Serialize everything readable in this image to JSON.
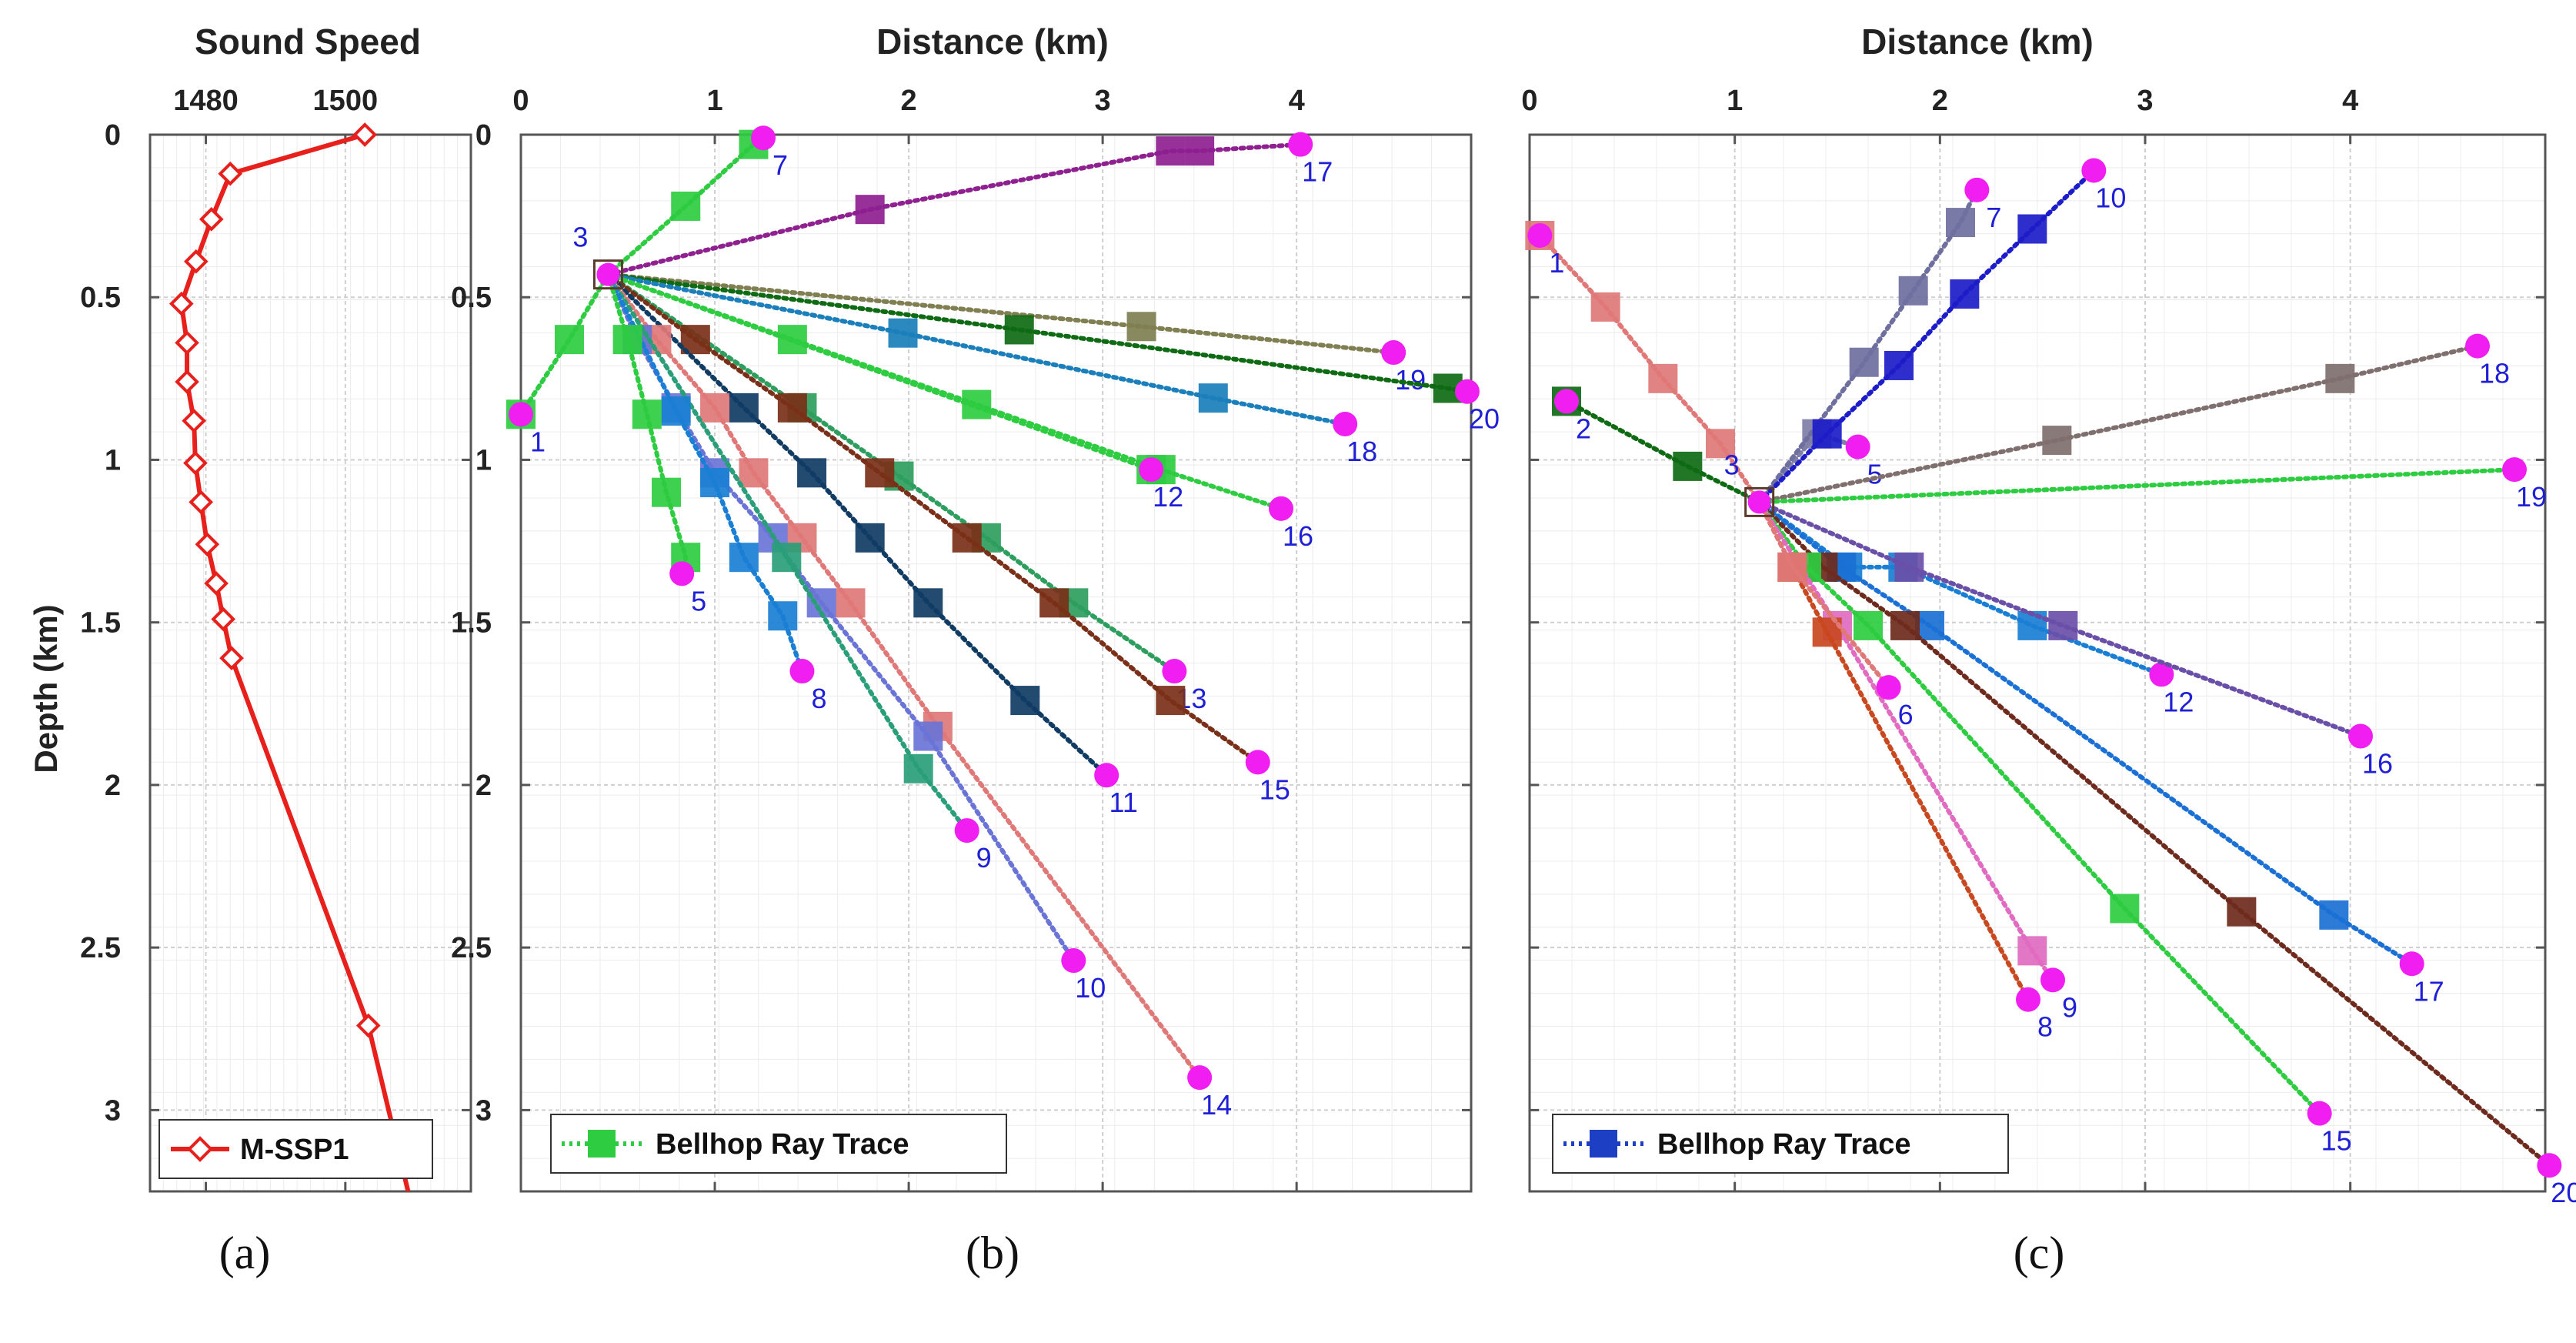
{
  "chart_data": [
    {
      "panel": "(a)",
      "type": "line",
      "title": "Sound Speed",
      "ylabel": "Depth (km)",
      "xlim": [
        1472,
        1518
      ],
      "ylim": [
        0,
        3.25
      ],
      "xticks": [
        "1480",
        "1500"
      ],
      "xtick_values": [
        1480,
        1500
      ],
      "yticks": [
        "0",
        "0.5",
        "1",
        "1.5",
        "2",
        "2.5",
        "3"
      ],
      "ytick_values": [
        0,
        0.5,
        1,
        1.5,
        2,
        2.5,
        3
      ],
      "legend": "M-SSP1",
      "color": "#e8201c",
      "profile": [
        [
          1502.8,
          0
        ],
        [
          1483.5,
          0.12
        ],
        [
          1480.8,
          0.26
        ],
        [
          1478.6,
          0.39
        ],
        [
          1476.5,
          0.52
        ],
        [
          1477.3,
          0.64
        ],
        [
          1477.3,
          0.76
        ],
        [
          1478.3,
          0.88
        ],
        [
          1478.5,
          1.01
        ],
        [
          1479.3,
          1.13
        ],
        [
          1480.2,
          1.26
        ],
        [
          1481.5,
          1.38
        ],
        [
          1482.5,
          1.49
        ],
        [
          1483.7,
          1.61
        ],
        [
          1503.3,
          2.74
        ],
        [
          1509,
          3.25
        ]
      ],
      "markers": [
        [
          1502.8,
          0
        ],
        [
          1483.5,
          0.12
        ],
        [
          1480.8,
          0.26
        ],
        [
          1478.6,
          0.39
        ],
        [
          1476.5,
          0.52
        ],
        [
          1477.3,
          0.64
        ],
        [
          1477.3,
          0.76
        ],
        [
          1478.3,
          0.88
        ],
        [
          1478.5,
          1.01
        ],
        [
          1479.3,
          1.13
        ],
        [
          1480.2,
          1.26
        ],
        [
          1481.5,
          1.38
        ],
        [
          1482.5,
          1.49
        ],
        [
          1483.7,
          1.61
        ],
        [
          1503.3,
          2.74
        ]
      ]
    },
    {
      "panel": "(b)",
      "type": "scatter",
      "title": "Distance (km)",
      "xlim": [
        0,
        4.9
      ],
      "ylim": [
        0,
        3.25
      ],
      "xticks": [
        "0",
        "1",
        "2",
        "3",
        "4"
      ],
      "xtick_values": [
        0,
        1,
        2,
        3,
        4
      ],
      "yticks": [
        "0",
        "0.5",
        "1",
        "1.5",
        "2",
        "2.5",
        "3"
      ],
      "ytick_values": [
        0,
        0.5,
        1,
        1.5,
        2,
        2.5,
        3
      ],
      "legend": "Bellhop Ray Trace",
      "legend_color": "#2ecc40",
      "source": {
        "label": "3",
        "x": 0.45,
        "y": 0.43
      },
      "rays": [
        {
          "label": "1",
          "x": 0,
          "y": 0.86,
          "color": "#2ecc40",
          "squares": [
            [
              0.25,
              0.63
            ],
            [
              0,
              0.86
            ]
          ]
        },
        {
          "label": "7",
          "x": 1.25,
          "y": 0.01,
          "color": "#2ecc40",
          "squares": [
            [
              0.85,
              0.22
            ],
            [
              1.2,
              0.03
            ]
          ]
        },
        {
          "label": "17",
          "x": 4.02,
          "y": 0.03,
          "color": "#8e2090",
          "squares": [
            [
              1.8,
              0.23
            ],
            [
              3.35,
              0.05
            ],
            [
              3.5,
              0.05
            ]
          ]
        },
        {
          "label": "19",
          "x": 4.5,
          "y": 0.67,
          "color": "#7f7f52",
          "squares": [
            [
              3.2,
              0.59
            ]
          ]
        },
        {
          "label": "20",
          "x": 4.88,
          "y": 0.79,
          "color": "#0f6b13",
          "squares": [
            [
              2.57,
              0.6
            ],
            [
              4.78,
              0.78
            ]
          ]
        },
        {
          "label": "18",
          "x": 4.25,
          "y": 0.89,
          "color": "#1a7fba",
          "squares": [
            [
              1.97,
              0.61
            ],
            [
              3.57,
              0.81
            ]
          ]
        },
        {
          "label": "16",
          "x": 3.92,
          "y": 1.15,
          "color": "#2ecc40",
          "squares": [
            [
              1.4,
              0.63
            ],
            [
              2.35,
              0.83
            ],
            [
              3.3,
              1.03
            ]
          ]
        },
        {
          "label": "12",
          "x": 3.25,
          "y": 1.03,
          "color": "#2ecc40",
          "squares": [
            [
              3.25,
              1.03
            ]
          ]
        },
        {
          "label": "13",
          "x": 3.37,
          "y": 1.65,
          "color": "#2e9e5e",
          "squares": [
            [
              1.45,
              0.84
            ],
            [
              1.95,
              1.05
            ],
            [
              2.4,
              1.24
            ],
            [
              2.85,
              1.44
            ]
          ]
        },
        {
          "label": "15",
          "x": 3.8,
          "y": 1.93,
          "color": "#7a3018",
          "squares": [
            [
              0.9,
              0.63
            ],
            [
              1.4,
              0.84
            ],
            [
              1.85,
              1.04
            ],
            [
              2.3,
              1.24
            ],
            [
              2.75,
              1.44
            ],
            [
              3.35,
              1.74
            ]
          ]
        },
        {
          "label": "11",
          "x": 3.02,
          "y": 1.97,
          "color": "#103c64",
          "squares": [
            [
              1.15,
              0.84
            ],
            [
              1.5,
              1.04
            ],
            [
              1.8,
              1.24
            ],
            [
              2.1,
              1.44
            ],
            [
              2.6,
              1.74
            ]
          ]
        },
        {
          "label": "14",
          "x": 3.5,
          "y": 2.9,
          "color": "#e07878",
          "squares": [
            [
              0.7,
              0.63
            ],
            [
              1.0,
              0.84
            ],
            [
              1.2,
              1.04
            ],
            [
              1.45,
              1.24
            ],
            [
              1.7,
              1.44
            ],
            [
              2.15,
              1.82
            ]
          ]
        },
        {
          "label": "10",
          "x": 2.85,
          "y": 2.54,
          "color": "#6a74d6",
          "squares": [
            [
              0.6,
              0.63
            ],
            [
              0.8,
              0.84
            ],
            [
              1.0,
              1.04
            ],
            [
              1.3,
              1.24
            ],
            [
              1.55,
              1.44
            ],
            [
              2.1,
              1.85
            ]
          ]
        },
        {
          "label": "9",
          "x": 2.3,
          "y": 2.14,
          "color": "#2a9e78",
          "squares": [
            [
              1.37,
              1.3
            ],
            [
              2.05,
              1.95
            ]
          ]
        },
        {
          "label": "8",
          "x": 1.45,
          "y": 1.65,
          "color": "#1a7fd4",
          "squares": [
            [
              0.8,
              0.85
            ],
            [
              1.0,
              1.07
            ],
            [
              1.15,
              1.3
            ],
            [
              1.35,
              1.48
            ]
          ]
        },
        {
          "label": "5",
          "x": 0.83,
          "y": 1.35,
          "color": "#2ecc40",
          "squares": [
            [
              0.55,
              0.63
            ],
            [
              0.65,
              0.86
            ],
            [
              0.75,
              1.1
            ],
            [
              0.85,
              1.3
            ]
          ]
        }
      ]
    },
    {
      "panel": "(c)",
      "type": "scatter",
      "title": "Distance (km)",
      "xlim": [
        0,
        4.95
      ],
      "ylim": [
        0,
        3.25
      ],
      "xticks": [
        "0",
        "1",
        "2",
        "3",
        "4"
      ],
      "xtick_values": [
        0,
        1,
        2,
        3,
        4
      ],
      "yticks": [],
      "legend": "Bellhop Ray Trace",
      "legend_color": "#1c3fc4",
      "source": {
        "label": "3",
        "x": 1.12,
        "y": 1.13
      },
      "rays": [
        {
          "label": "1",
          "x": 0.05,
          "y": 0.31,
          "color": "#e07878",
          "squares": [
            [
              0.05,
              0.31
            ],
            [
              0.37,
              0.53
            ],
            [
              0.65,
              0.75
            ],
            [
              0.93,
              0.95
            ]
          ]
        },
        {
          "label": "2",
          "x": 0.18,
          "y": 0.82,
          "color": "#0f6b13",
          "squares": [
            [
              0.18,
              0.82
            ],
            [
              0.77,
              1.02
            ]
          ]
        },
        {
          "label": "5",
          "x": 1.6,
          "y": 0.96,
          "color": "#7f7fa8",
          "squares": [
            [
              1.4,
              0.92
            ]
          ]
        },
        {
          "label": "7",
          "x": 2.18,
          "y": 0.17,
          "color": "#6f6f9f",
          "squares": [
            [
              1.63,
              0.7
            ],
            [
              1.87,
              0.48
            ],
            [
              2.1,
              0.27
            ]
          ]
        },
        {
          "label": "10",
          "x": 2.75,
          "y": 0.11,
          "color": "#1c1cc8",
          "squares": [
            [
              1.45,
              0.92
            ],
            [
              1.8,
              0.71
            ],
            [
              2.12,
              0.49
            ],
            [
              2.45,
              0.29
            ]
          ]
        },
        {
          "label": "18",
          "x": 4.62,
          "y": 0.65,
          "color": "#7f6f6f",
          "squares": [
            [
              2.57,
              0.94
            ],
            [
              3.95,
              0.75
            ]
          ]
        },
        {
          "label": "19",
          "x": 4.8,
          "y": 1.03,
          "color": "#2ecc40",
          "squares": []
        },
        {
          "label": "12",
          "x": 3.08,
          "y": 1.66,
          "color": "#1a7fd4",
          "squares": [
            [
              1.55,
              1.33
            ],
            [
              1.82,
              1.33
            ],
            [
              2.45,
              1.51
            ]
          ]
        },
        {
          "label": "16",
          "x": 4.05,
          "y": 1.85,
          "color": "#6a4fa8",
          "squares": [
            [
              1.85,
              1.33
            ],
            [
              2.6,
              1.51
            ]
          ]
        },
        {
          "label": "17",
          "x": 4.3,
          "y": 2.55,
          "color": "#1a70d4",
          "squares": [
            [
              1.52,
              1.33
            ],
            [
              1.95,
              1.51
            ],
            [
              3.92,
              2.4
            ]
          ]
        },
        {
          "label": "20",
          "x": 4.97,
          "y": 3.17,
          "color": "#6e2a1c",
          "squares": [
            [
              1.43,
              1.33
            ],
            [
              1.83,
              1.51
            ],
            [
              3.47,
              2.39
            ]
          ]
        },
        {
          "label": "15",
          "x": 3.85,
          "y": 3.01,
          "color": "#2ecc40",
          "squares": [
            [
              1.35,
              1.33
            ],
            [
              1.65,
              1.51
            ],
            [
              2.9,
              2.38
            ]
          ]
        },
        {
          "label": "9",
          "x": 2.55,
          "y": 2.6,
          "color": "#e06bc0",
          "squares": [
            [
              1.5,
              1.51
            ],
            [
              2.45,
              2.51
            ]
          ]
        },
        {
          "label": "8",
          "x": 2.43,
          "y": 2.66,
          "color": "#c84820",
          "squares": [
            [
              1.28,
              1.33
            ],
            [
              1.45,
              1.53
            ]
          ]
        },
        {
          "label": "6",
          "x": 1.75,
          "y": 1.7,
          "color": "#e07878",
          "squares": [
            [
              1.28,
              1.33
            ]
          ]
        }
      ]
    }
  ],
  "panel_labels": {
    "a": "(a)",
    "b": "(b)",
    "c": "(c)"
  }
}
